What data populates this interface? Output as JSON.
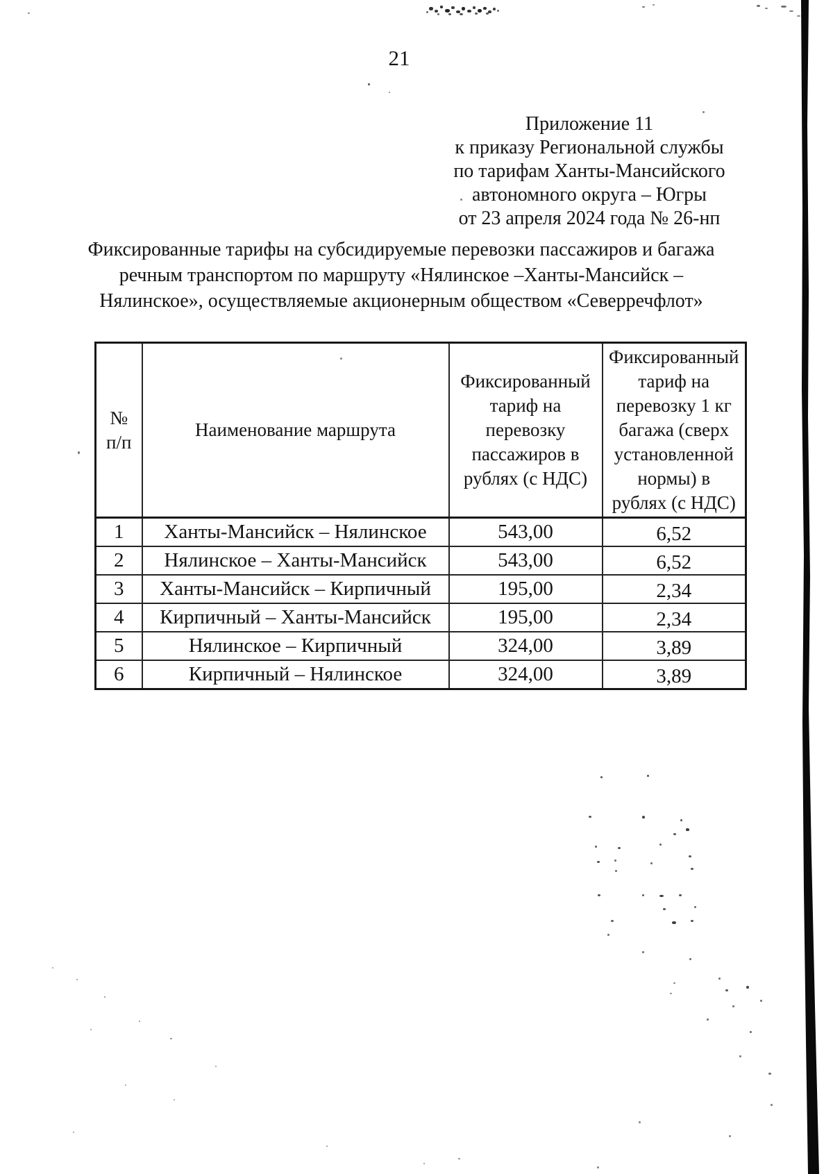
{
  "page": {
    "number": "21"
  },
  "appendix": {
    "lines": [
      "Приложение 11",
      "к приказу Региональной службы",
      "по тарифам Ханты-Мансийского",
      "автономного округа – Югры",
      "от 23 апреля 2024 года № 26-нп"
    ]
  },
  "title": {
    "lines": [
      "Фиксированные тарифы на субсидируемые перевозки пассажиров и багажа",
      "речным транспортом по маршруту «Нялинское –Ханты-Мансийск –",
      "Нялинское», осуществляемые акционерным обществом «Северречфлот»"
    ]
  },
  "table": {
    "columns": [
      "№\nп/п",
      "Наименование маршрута",
      "Фиксированный\nтариф на\nперевозку\nпассажиров в\nрублях (с НДС)",
      "Фиксированный\nтариф на\nперевозку 1 кг\nбагажа (сверх\nустановленной\nнормы) в\nрублях (с НДС)"
    ],
    "rows": [
      {
        "num": "1",
        "route": "Ханты-Мансийск – Нялинское",
        "passenger_tariff": "543,00",
        "baggage_tariff": "6,52"
      },
      {
        "num": "2",
        "route": "Нялинское – Ханты-Мансийск",
        "passenger_tariff": "543,00",
        "baggage_tariff": "6,52"
      },
      {
        "num": "3",
        "route": "Ханты-Мансийск – Кирпичный",
        "passenger_tariff": "195,00",
        "baggage_tariff": "2,34"
      },
      {
        "num": "4",
        "route": "Кирпичный – Ханты-Мансийск",
        "passenger_tariff": "195,00",
        "baggage_tariff": "2,34"
      },
      {
        "num": "5",
        "route": "Нялинское – Кирпичный",
        "passenger_tariff": "324,00",
        "baggage_tariff": "3,89"
      },
      {
        "num": "6",
        "route": "Кирпичный – Нялинское",
        "passenger_tariff": "324,00",
        "baggage_tariff": "3,89"
      }
    ]
  },
  "ink_color": "#141414"
}
